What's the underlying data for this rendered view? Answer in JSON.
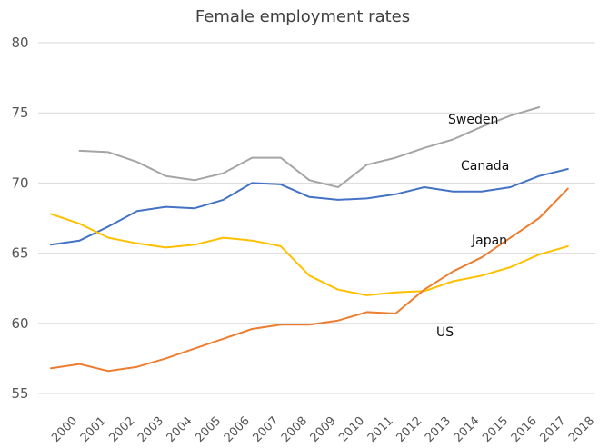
{
  "chart_data": {
    "type": "line",
    "title": "Female employment rates",
    "xlabel": "",
    "ylabel": "",
    "ylim": [
      55,
      80
    ],
    "yticks": [
      55,
      60,
      65,
      70,
      75,
      80
    ],
    "grid": true,
    "categories": [
      "2000",
      "2001",
      "2002",
      "2003",
      "2004",
      "2005",
      "2006",
      "2007",
      "2008",
      "2009",
      "2010",
      "2011",
      "2012",
      "2013",
      "2014",
      "2015",
      "2016",
      "2017",
      "2018"
    ],
    "series": [
      {
        "name": "Sweden",
        "color": "#a5a5a5",
        "values": [
          null,
          72.3,
          72.2,
          71.5,
          70.5,
          70.2,
          70.7,
          71.8,
          71.8,
          70.2,
          69.7,
          71.3,
          71.8,
          72.5,
          73.1,
          74.0,
          74.8,
          75.4,
          null
        ]
      },
      {
        "name": "Canada",
        "color": "#4472c4",
        "values": [
          65.6,
          65.9,
          66.9,
          68.0,
          68.3,
          68.2,
          68.8,
          70.0,
          69.9,
          69.0,
          68.8,
          68.9,
          69.2,
          69.7,
          69.4,
          69.4,
          69.7,
          70.5,
          71.0
        ]
      },
      {
        "name": "Japan",
        "color": "#ffc000",
        "values": [
          67.8,
          67.1,
          66.1,
          65.7,
          65.4,
          65.6,
          66.1,
          65.9,
          65.5,
          63.4,
          62.4,
          62.0,
          62.2,
          62.3,
          63.0,
          63.4,
          64.0,
          64.9,
          65.5
        ]
      },
      {
        "name": "US",
        "color": "#ed7d31",
        "values": [
          56.8,
          57.1,
          56.6,
          56.9,
          57.5,
          58.2,
          58.9,
          59.6,
          59.9,
          59.9,
          60.2,
          60.8,
          60.7,
          62.4,
          63.7,
          64.7,
          66.1,
          67.5,
          69.6
        ]
      }
    ],
    "labels": [
      {
        "text": "Sweden",
        "series": "Sweden"
      },
      {
        "text": "Canada",
        "series": "Canada"
      },
      {
        "text": "Japan",
        "series": "Japan"
      },
      {
        "text": "US",
        "series": "US"
      }
    ]
  }
}
